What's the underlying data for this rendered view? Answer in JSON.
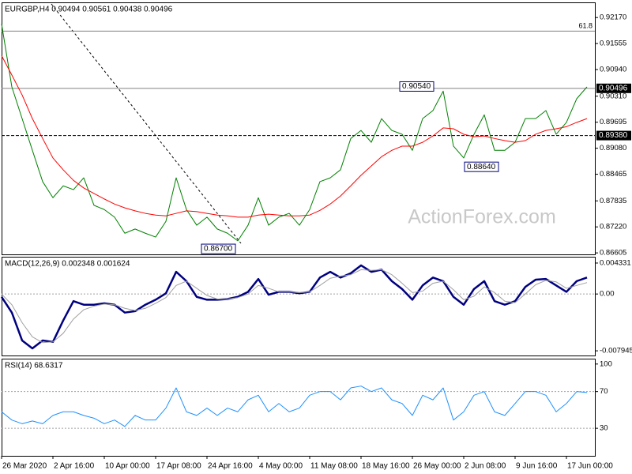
{
  "chart_data": [
    {
      "type": "line",
      "title": "EURGBP,H4  0.90494 0.90561 0.90438 0.90496",
      "watermark": "ActionForex.com",
      "ylim": [
        0.8657,
        0.9251
      ],
      "yticks": [
        {
          "value": 0.9217,
          "label": "0.92170"
        },
        {
          "value": 0.91555,
          "label": "0.91555"
        },
        {
          "value": 0.9094,
          "label": "0.90940"
        },
        {
          "value": 0.9031,
          "label": "0.90310"
        },
        {
          "value": 0.89695,
          "label": "0.89695"
        },
        {
          "value": 0.8908,
          "label": "0.89080"
        },
        {
          "value": 0.88465,
          "label": "0.88465"
        },
        {
          "value": 0.87835,
          "label": "0.87835"
        },
        {
          "value": 0.8722,
          "label": "0.87220"
        },
        {
          "value": 0.86605,
          "label": "0.86605"
        }
      ],
      "levels": [
        {
          "value": 0.9185,
          "label": "61.8"
        },
        {
          "value": 0.90496,
          "label": "0.90496"
        },
        {
          "value": 0.8938,
          "label": "0.89380"
        }
      ],
      "annotations": [
        {
          "value": 0.9054,
          "label": "0.90540"
        },
        {
          "value": 0.8864,
          "label": "0.88640"
        },
        {
          "value": 0.867,
          "label": "0.86700"
        }
      ],
      "series": [
        {
          "color": "#008000",
          "values": [
            0.9202,
            0.9053,
            0.8978,
            0.8903,
            0.8829,
            0.8791,
            0.8819,
            0.881,
            0.8838,
            0.8773,
            0.8763,
            0.8745,
            0.8707,
            0.8717,
            0.8707,
            0.8698,
            0.8735,
            0.8838,
            0.8763,
            0.8726,
            0.8745,
            0.8717,
            0.8707,
            0.8689,
            0.8726,
            0.8791,
            0.8726,
            0.8745,
            0.8754,
            0.8726,
            0.8763,
            0.8829,
            0.8838,
            0.8857,
            0.8931,
            0.895,
            0.8922,
            0.8978,
            0.895,
            0.8941,
            0.8903,
            0.8978,
            0.8997,
            0.9043,
            0.8913,
            0.8885,
            0.8941,
            0.8987,
            0.8903,
            0.8903,
            0.8922,
            0.8978,
            0.8978,
            0.8997,
            0.8941,
            0.8969,
            0.9025,
            0.9053
          ]
        },
        {
          "color": "#ff0000",
          "values": [
            0.9127,
            0.9081,
            0.9034,
            0.8978,
            0.8931,
            0.8885,
            0.8857,
            0.8832,
            0.8814,
            0.8801,
            0.8788,
            0.8776,
            0.8767,
            0.876,
            0.8754,
            0.875,
            0.8748,
            0.8754,
            0.876,
            0.8758,
            0.8754,
            0.875,
            0.8748,
            0.8745,
            0.8745,
            0.875,
            0.8752,
            0.875,
            0.8748,
            0.8748,
            0.875,
            0.8761,
            0.8776,
            0.8795,
            0.8819,
            0.8844,
            0.8866,
            0.8888,
            0.8903,
            0.8913,
            0.8913,
            0.8922,
            0.8937,
            0.8956,
            0.8954,
            0.8941,
            0.8935,
            0.8937,
            0.8931,
            0.8926,
            0.8922,
            0.8926,
            0.8941,
            0.895,
            0.8954,
            0.8959,
            0.8969,
            0.8978
          ]
        }
      ]
    },
    {
      "type": "line",
      "title": "MACD(12,26,9) 0.002348 0.001624",
      "ylim": [
        -0.0086,
        0.0051
      ],
      "yticks": [
        0.004331,
        {
          "value": 0,
          "label": "0.00"
        },
        -0.007945
      ],
      "levels": [
        0
      ],
      "series": [
        {
          "color": "#000080",
          "values": [
            -0.0004,
            -0.0026,
            -0.0065,
            -0.0076,
            -0.0065,
            -0.0067,
            -0.0037,
            -0.001,
            -0.0015,
            -0.0015,
            -0.0013,
            -0.0015,
            -0.0026,
            -0.0024,
            -0.0015,
            -0.0008,
            0.0001,
            0.0031,
            0.0018,
            -0.0004,
            -0.0008,
            -0.0008,
            -0.0007,
            -0.0004,
            0.0003,
            0.0021,
            -0.0001,
            0.0003,
            0.0003,
            0.0001,
            0.0003,
            0.0023,
            0.0031,
            0.0023,
            0.0029,
            0.004,
            0.0031,
            0.0034,
            0.0018,
            0.0007,
            -0.0008,
            0.0012,
            0.0023,
            0.0018,
            -0.0004,
            -0.0015,
            0.0007,
            0.0018,
            -0.001,
            -0.0015,
            -0.001,
            0.001,
            0.002,
            0.0021,
            0.0012,
            0.0003,
            0.0018,
            0.0023
          ]
        },
        {
          "color": "#a0a0a0",
          "values": [
            0.0,
            -0.0015,
            -0.004,
            -0.006,
            -0.0068,
            -0.0067,
            -0.0055,
            -0.0035,
            -0.0022,
            -0.0017,
            -0.0014,
            -0.0015,
            -0.002,
            -0.0023,
            -0.002,
            -0.0013,
            -0.0005,
            0.0012,
            0.0018,
            0.0008,
            -0.0002,
            -0.0007,
            -0.0007,
            -0.0005,
            0.0,
            0.0012,
            0.0008,
            0.0003,
            0.0003,
            0.0002,
            0.0003,
            0.0012,
            0.0022,
            0.0025,
            0.0027,
            0.0034,
            0.0033,
            0.0034,
            0.0027,
            0.0015,
            0.0002,
            0.0004,
            0.0015,
            0.0018,
            0.0006,
            -0.0008,
            -0.0003,
            0.001,
            0.0002,
            -0.001,
            -0.0012,
            0.0,
            0.0013,
            0.0019,
            0.0017,
            0.0008,
            0.0012,
            0.0016
          ]
        }
      ]
    },
    {
      "type": "line",
      "title": "RSI(14) 68.6317",
      "ylim": [
        0,
        105
      ],
      "yticks": [
        100,
        70,
        30
      ],
      "levels": [
        70,
        30
      ],
      "categories": [
        "26 Mar 2020",
        null,
        null,
        null,
        null,
        "2 Apr 16:00",
        null,
        null,
        null,
        null,
        "10 Apr 00:00",
        null,
        null,
        null,
        null,
        "17 Apr 08:00",
        null,
        null,
        null,
        null,
        "24 Apr 16:00",
        null,
        null,
        null,
        null,
        "4 May 00:00",
        null,
        null,
        null,
        null,
        "11 May 08:00",
        null,
        null,
        null,
        null,
        "18 May 16:00",
        null,
        null,
        null,
        null,
        "26 May 00:00",
        null,
        null,
        null,
        null,
        "2 Jun 08:00",
        null,
        null,
        null,
        null,
        "9 Jun 16:00",
        null,
        null,
        null,
        null,
        "17 Jun 00:00",
        null,
        null
      ],
      "series": [
        {
          "color": "#1e90ff",
          "values": [
            48,
            39,
            35,
            38,
            35,
            44,
            48,
            48,
            44,
            41,
            35,
            39,
            32,
            44,
            39,
            39,
            52,
            74,
            48,
            44,
            52,
            44,
            52,
            48,
            61,
            66,
            48,
            57,
            48,
            52,
            66,
            70,
            70,
            61,
            74,
            76,
            70,
            74,
            61,
            57,
            44,
            66,
            61,
            74,
            39,
            48,
            66,
            70,
            48,
            44,
            57,
            70,
            70,
            66,
            48,
            57,
            70,
            69
          ]
        }
      ]
    }
  ]
}
